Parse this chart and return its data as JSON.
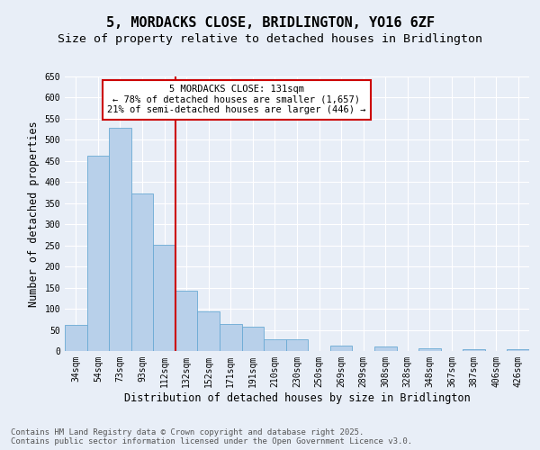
{
  "title": "5, MORDACKS CLOSE, BRIDLINGTON, YO16 6ZF",
  "subtitle": "Size of property relative to detached houses in Bridlington",
  "xlabel": "Distribution of detached houses by size in Bridlington",
  "ylabel": "Number of detached properties",
  "categories": [
    "34sqm",
    "54sqm",
    "73sqm",
    "93sqm",
    "112sqm",
    "132sqm",
    "152sqm",
    "171sqm",
    "191sqm",
    "210sqm",
    "230sqm",
    "250sqm",
    "269sqm",
    "289sqm",
    "308sqm",
    "328sqm",
    "348sqm",
    "367sqm",
    "387sqm",
    "406sqm",
    "426sqm"
  ],
  "values": [
    62,
    463,
    528,
    372,
    252,
    143,
    93,
    63,
    57,
    28,
    28,
    0,
    12,
    0,
    11,
    0,
    7,
    0,
    5,
    0,
    5
  ],
  "bar_color": "#b8d0ea",
  "bar_edge_color": "#6aaad4",
  "background_color": "#e8eef7",
  "grid_color": "#ffffff",
  "vline_color": "#cc0000",
  "vline_pos": 5.0,
  "annotation_title": "5 MORDACKS CLOSE: 131sqm",
  "annotation_line1": "← 78% of detached houses are smaller (1,657)",
  "annotation_line2": "21% of semi-detached houses are larger (446) →",
  "annotation_box_color": "#cc0000",
  "ylim": [
    0,
    650
  ],
  "yticks": [
    0,
    50,
    100,
    150,
    200,
    250,
    300,
    350,
    400,
    450,
    500,
    550,
    600,
    650
  ],
  "footer_line1": "Contains HM Land Registry data © Crown copyright and database right 2025.",
  "footer_line2": "Contains public sector information licensed under the Open Government Licence v3.0.",
  "title_fontsize": 11,
  "subtitle_fontsize": 9.5,
  "tick_fontsize": 7,
  "label_fontsize": 8.5,
  "footer_fontsize": 6.5
}
